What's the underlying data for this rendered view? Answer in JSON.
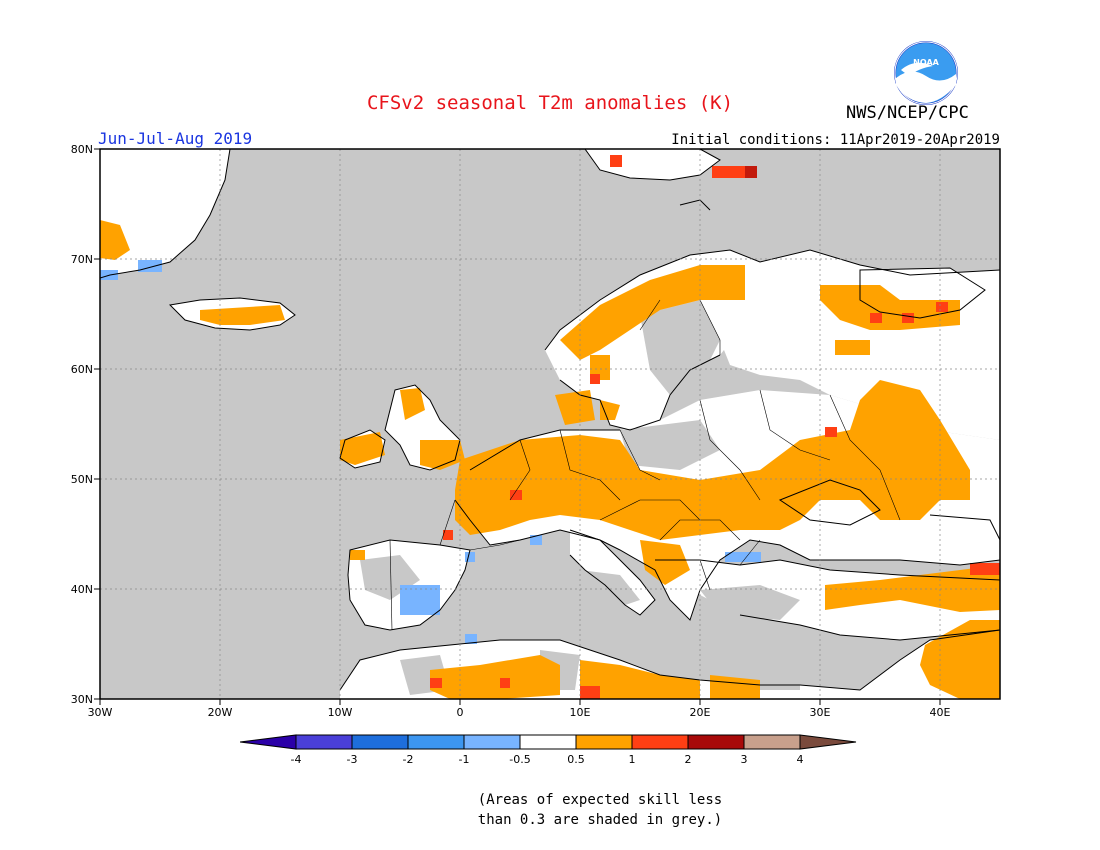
{
  "header": {
    "title": "CFSv2 seasonal T2m anomalies (K)",
    "period": "Jun-Jul-Aug 2019",
    "initial_conditions": "Initial conditions: 11Apr2019-20Apr2019",
    "agency": "NWS/NCEP/CPC",
    "logo_text": "NOAA"
  },
  "map": {
    "lat_labels": [
      "80N",
      "70N",
      "60N",
      "50N",
      "40N",
      "30N"
    ],
    "lon_labels": [
      "30W",
      "20W",
      "10W",
      "0",
      "10E",
      "20E",
      "30E",
      "40E"
    ],
    "lat_values": [
      80,
      70,
      60,
      50,
      40,
      30
    ],
    "lon_values": [
      -30,
      -20,
      -10,
      0,
      10,
      20,
      30,
      40
    ],
    "lon_range": [
      -30,
      45
    ],
    "lat_range": [
      30,
      80
    ],
    "colors": {
      "ocean_grey": "#c8c8c8",
      "land_white": "#ffffff",
      "warm": "#ffa200",
      "hot": "#ff3f14",
      "very_hot": "#c21a0c",
      "cool": "#78b4ff",
      "coast": "#000000"
    }
  },
  "legend": {
    "labels": [
      "-4",
      "-3",
      "-2",
      "-1",
      "-0.5",
      "0.5",
      "1",
      "2",
      "3",
      "4"
    ],
    "colors": [
      "#2b00a8",
      "#4a3fd8",
      "#1e6edc",
      "#3c96f0",
      "#78b4ff",
      "#ffffff",
      "#ffa200",
      "#ff3f14",
      "#a80a0a",
      "#c8a08c",
      "#7a4a3c"
    ]
  },
  "note": {
    "line1": "(Areas of expected skill less",
    "line2": "than 0.3 are shaded in grey.)"
  }
}
